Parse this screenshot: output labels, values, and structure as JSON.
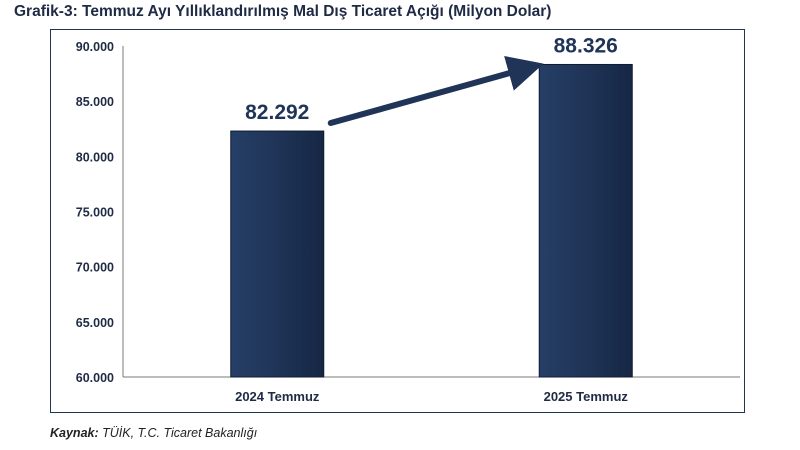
{
  "title": "Grafik-3: Temmuz Ayı Yıllıklandırılmış Mal Dış Ticaret Açığı (Milyon Dolar)",
  "source": {
    "label": "Kaynak:",
    "text": "TÜİK, T.C. Ticaret Bakanlığı"
  },
  "chart_data": {
    "type": "bar",
    "title": "Grafik-3: Temmuz Ayı Yıllıklandırılmış Mal Dış Ticaret Açığı (Milyon Dolar)",
    "categories": [
      "2024 Temmuz",
      "2025 Temmuz"
    ],
    "values": [
      82292,
      88326
    ],
    "data_labels": [
      "82.292",
      "88.326"
    ],
    "ylim": [
      60000,
      90000
    ],
    "yticks": [
      60000,
      65000,
      70000,
      75000,
      80000,
      85000,
      90000
    ],
    "ytick_labels": [
      "60.000",
      "65.000",
      "70.000",
      "75.000",
      "80.000",
      "85.000",
      "90.000"
    ],
    "xlabel": "",
    "ylabel": "",
    "grid": false,
    "legend": "none",
    "bar_color": "#1f3457",
    "arrow": {
      "from": "2024 Temmuz",
      "to": "2025 Temmuz",
      "color": "#1f3457"
    }
  }
}
